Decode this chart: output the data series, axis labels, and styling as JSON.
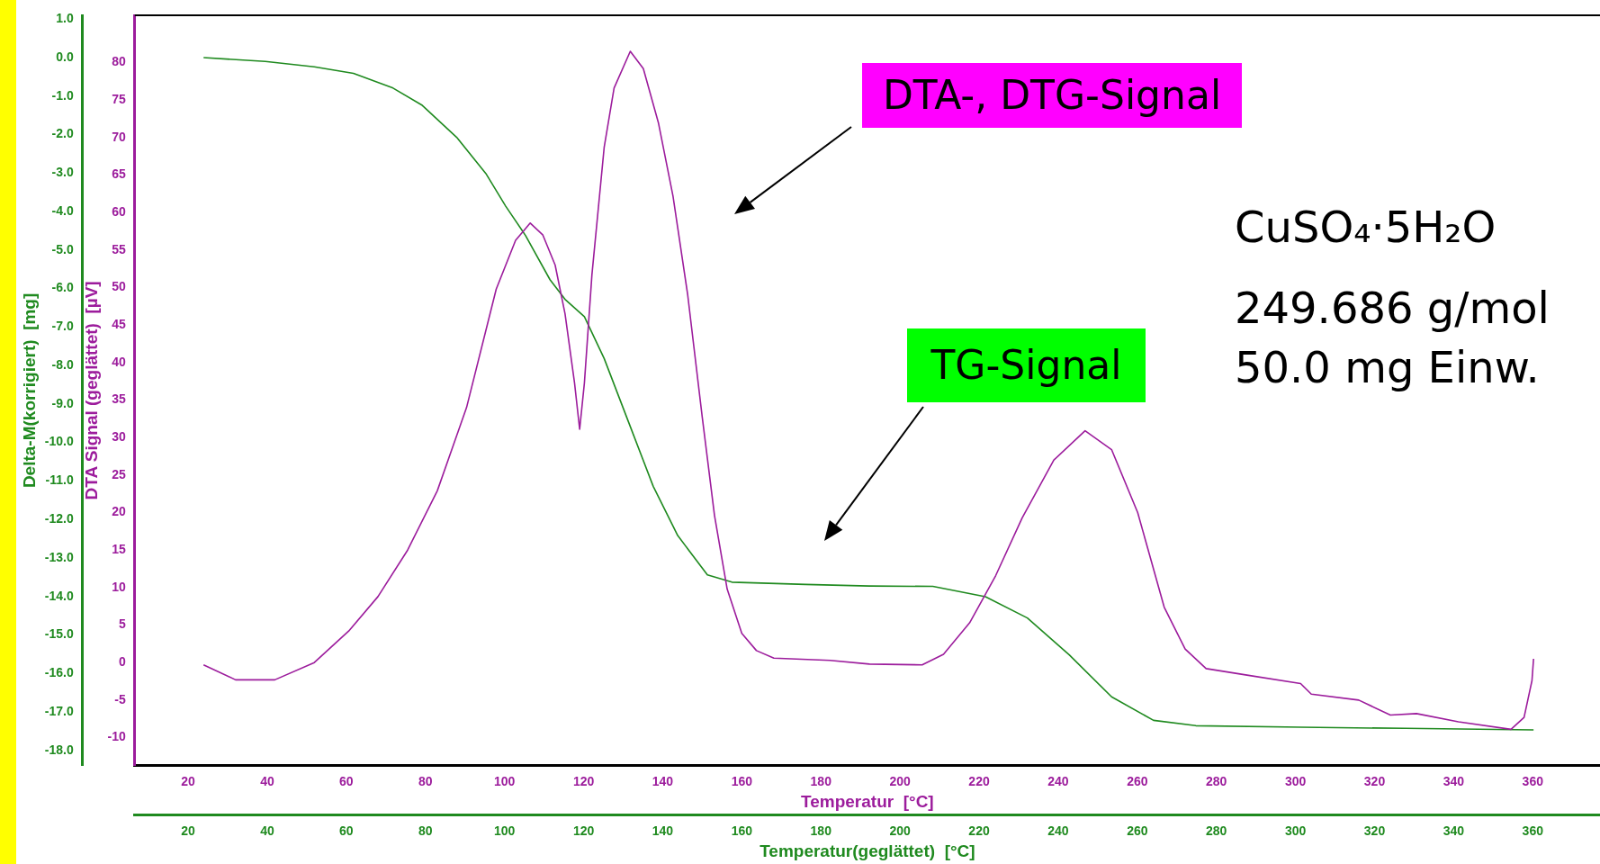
{
  "chart_data": {
    "type": "line",
    "xlabel": "Temperatur  [°C]",
    "x2label": "Temperatur(geglättet)  [°C]",
    "ylabel": "DTA Signal (geglättet)  [µV]",
    "y2label": "Delta-M(korrigiert)  [mg]",
    "xlim": [
      6.5,
      377
    ],
    "xticks": [
      20,
      40,
      60,
      80,
      100,
      120,
      140,
      160,
      180,
      200,
      220,
      240,
      260,
      280,
      300,
      320,
      340,
      360
    ],
    "x2lim": [
      6.5,
      377
    ],
    "x2ticks": [
      20,
      40,
      60,
      80,
      100,
      120,
      140,
      160,
      180,
      200,
      220,
      240,
      260,
      280,
      300,
      320,
      340,
      360
    ],
    "ylim": [
      -13.75,
      86.3
    ],
    "yticks": [
      -10,
      -5,
      0,
      5,
      10,
      15,
      20,
      25,
      30,
      35,
      40,
      45,
      50,
      55,
      60,
      65,
      70,
      75,
      80
    ],
    "y2lim": [
      -18.4,
      1.1
    ],
    "y2ticks": [
      {
        "value": 1,
        "label": "1.0"
      },
      {
        "value": 0,
        "label": "0.0"
      },
      {
        "value": -1,
        "label": "-1.0"
      },
      {
        "value": -2,
        "label": "-2.0"
      },
      {
        "value": -3,
        "label": "-3.0"
      },
      {
        "value": -4,
        "label": "-4.0"
      },
      {
        "value": -5,
        "label": "-5.0"
      },
      {
        "value": -6,
        "label": "-6.0"
      },
      {
        "value": -7,
        "label": "-7.0"
      },
      {
        "value": -8,
        "label": "-8.0"
      },
      {
        "value": -9,
        "label": "-9.0"
      },
      {
        "value": -10,
        "label": "-10.0"
      },
      {
        "value": -11,
        "label": "-11.0"
      },
      {
        "value": -12,
        "label": "-12.0"
      },
      {
        "value": -13,
        "label": "-13.0"
      },
      {
        "value": -14,
        "label": "-14.0"
      },
      {
        "value": -15,
        "label": "-15.0"
      },
      {
        "value": -16,
        "label": "-16.0"
      },
      {
        "value": -17,
        "label": "-17.0"
      },
      {
        "value": -18,
        "label": "-18.0"
      }
    ],
    "grid": false,
    "legend": false,
    "marker": "none",
    "line_style": "solid",
    "annotations": [
      "DTA-, DTG-Signal",
      "TG-Signal",
      "CuSO₄·5H₂O",
      "249.686 g/mol",
      "50.0 mg Einw."
    ],
    "series": [
      {
        "color": "#9c1c9c",
        "x": [
          23.9,
          32.0,
          41.9,
          51.9,
          60.6,
          68.0,
          75.5,
          83.0,
          90.4,
          97.9,
          102.8,
          106.5,
          109.7,
          112.8,
          115.3,
          117.7,
          119.0,
          120.2,
          122.1,
          125.2,
          127.7,
          131.8,
          135.1,
          138.9,
          142.6,
          146.3,
          150.0,
          153.1,
          156.3,
          160.0,
          163.7,
          168.1,
          182.3,
          192.3,
          205.6,
          211.0,
          217.6,
          224.2,
          230.9,
          238.9,
          246.8,
          253.5,
          260.1,
          266.8,
          272.1,
          277.4,
          288.1,
          301.3,
          304.0,
          316.0,
          324.0,
          330.6,
          341.2,
          354.5,
          357.8,
          359.8,
          360.2
        ],
        "values": [
          -0.3,
          -2.3,
          -2.3,
          0.0,
          4.2,
          8.8,
          15.0,
          22.9,
          34.0,
          49.8,
          56.3,
          58.6,
          57.0,
          53.0,
          46.5,
          37.3,
          31.1,
          37.3,
          51.7,
          68.7,
          76.6,
          81.5,
          79.2,
          72.0,
          62.2,
          49.1,
          32.7,
          19.6,
          9.8,
          3.9,
          1.6,
          0.6,
          0.3,
          -0.2,
          -0.3,
          1.1,
          5.3,
          11.6,
          19.3,
          27.0,
          30.9,
          28.4,
          20.0,
          7.4,
          1.8,
          -0.8,
          -1.7,
          -2.8,
          -4.2,
          -5.0,
          -7.0,
          -6.8,
          -7.9,
          -8.9,
          -7.3,
          -2.4,
          0.5
        ]
      },
      {
        "color": "#1f8a1f",
        "axis": "y2",
        "x": [
          23.9,
          39.5,
          51.9,
          61.8,
          71.8,
          79.2,
          87.9,
          95.4,
          100.3,
          105.3,
          111.5,
          115.3,
          120.2,
          125.2,
          131.4,
          137.6,
          143.8,
          151.3,
          157.5,
          176.1,
          192.2,
          208.3,
          221.6,
          232.2,
          242.8,
          253.5,
          264.1,
          274.8,
          301.3,
          327.9,
          360.2
        ],
        "values": [
          0.0,
          -0.1,
          -0.24,
          -0.41,
          -0.79,
          -1.24,
          -2.07,
          -3.03,
          -3.86,
          -4.62,
          -5.77,
          -6.28,
          -6.73,
          -7.82,
          -9.48,
          -11.14,
          -12.42,
          -13.44,
          -13.63,
          -13.69,
          -13.73,
          -13.74,
          -14.01,
          -14.56,
          -15.52,
          -16.61,
          -17.22,
          -17.36,
          -17.4,
          -17.43,
          -17.47
        ]
      }
    ]
  }
}
